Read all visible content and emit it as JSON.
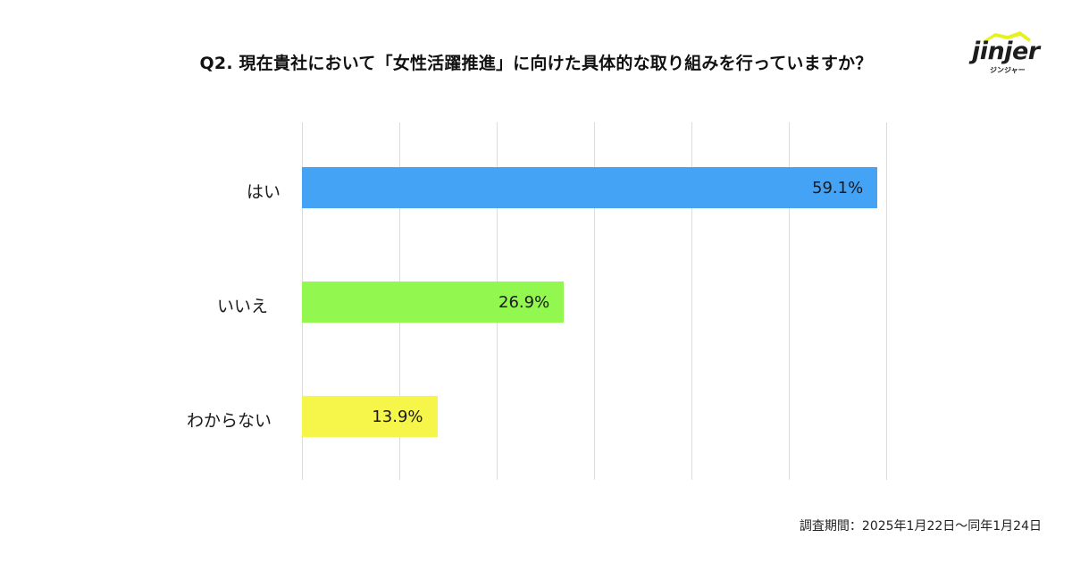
{
  "title": "Q2. 現在貴社において「女性活躍推進」に向けた具体的な取り組みを行っていますか？",
  "logo": {
    "wordmark": "jinjer",
    "kana": "ジンジャー",
    "roof_color": "#e6f21e",
    "text_color": "#1d1d1f"
  },
  "footer": {
    "survey_period": "調査期間：2025年1月22日〜同年1月24日"
  },
  "chart_data": {
    "type": "bar",
    "orientation": "horizontal",
    "title": "Q2. 現在貴社において「女性活躍推進」に向けた具体的な取り組みを行っていますか？",
    "categories": [
      "はい",
      "いいえ",
      "わからない"
    ],
    "values": [
      59.1,
      26.9,
      13.9
    ],
    "labels": [
      "59.1%",
      "26.9%",
      "13.9%"
    ],
    "colors": [
      "#44a3f5",
      "#92f74e",
      "#f5f54a"
    ],
    "unit": "%",
    "xlabel": "",
    "ylabel": "",
    "xlim": [
      0,
      60
    ],
    "gridlines": [
      0,
      10,
      20,
      30,
      40,
      50,
      60
    ],
    "grid": true,
    "tick_labels_visible": false,
    "legend": "none"
  }
}
